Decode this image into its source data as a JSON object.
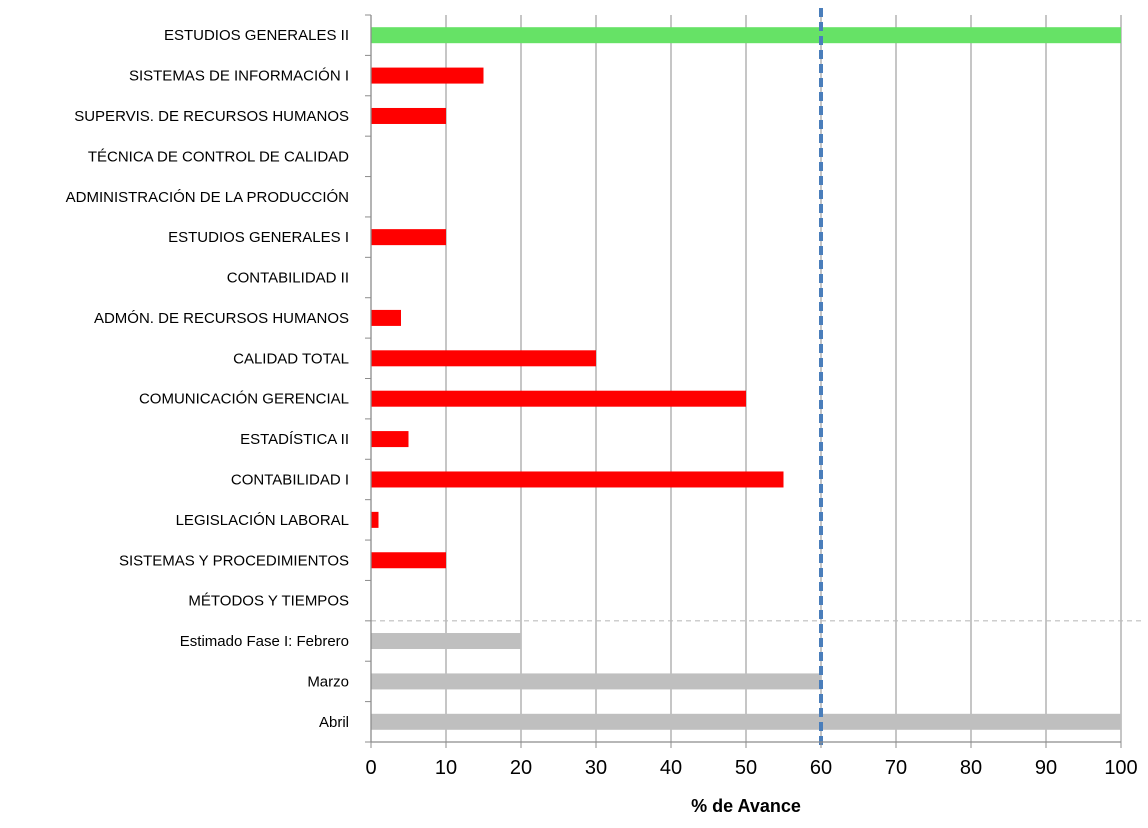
{
  "chart_data": {
    "type": "bar",
    "orientation": "horizontal",
    "title": "",
    "xlabel": "% de Avance",
    "ylabel": "",
    "xlim": [
      0,
      100
    ],
    "xticks": [
      0,
      10,
      20,
      30,
      40,
      50,
      60,
      70,
      80,
      90,
      100
    ],
    "grid": "vertical",
    "legend": "none",
    "reference_line": {
      "x": 60,
      "color": "#4a7ebb",
      "style": "dashed"
    },
    "categories": [
      "ESTUDIOS GENERALES II",
      "SISTEMAS DE INFORMACIÓN I",
      "SUPERVIS. DE  RECURSOS HUMANOS",
      "TÉCNICA DE CONTROL DE CALIDAD",
      "ADMINISTRACIÓN DE LA PRODUCCIÓN",
      "ESTUDIOS GENERALES I",
      "CONTABILIDAD II",
      "ADMÓN. DE RECURSOS HUMANOS",
      "CALIDAD TOTAL",
      "COMUNICACIÓN GERENCIAL",
      "ESTADÍSTICA II",
      "CONTABILIDAD I",
      "LEGISLACIÓN LABORAL",
      "SISTEMAS Y PROCEDIMIENTOS",
      "MÉTODOS Y TIEMPOS",
      "Estimado Fase I:  Febrero",
      "Marzo",
      "Abril"
    ],
    "values": [
      100,
      15,
      10,
      0,
      0,
      10,
      0,
      4,
      30,
      50,
      5,
      55,
      1,
      10,
      0,
      20,
      60,
      100
    ],
    "colors": [
      "#66e266",
      "#ff0000",
      "#ff0000",
      "#ff0000",
      "#ff0000",
      "#ff0000",
      "#ff0000",
      "#ff0000",
      "#ff0000",
      "#ff0000",
      "#ff0000",
      "#ff0000",
      "#ff0000",
      "#ff0000",
      "#ff0000",
      "#bfbfbf",
      "#bfbfbf",
      "#bfbfbf"
    ],
    "separator_after_index": 14
  }
}
